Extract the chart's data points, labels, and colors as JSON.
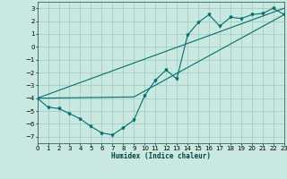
{
  "xlabel": "Humidex (Indice chaleur)",
  "xlim": [
    0,
    23
  ],
  "ylim": [
    -7.5,
    3.5
  ],
  "yticks": [
    3,
    2,
    1,
    0,
    -1,
    -2,
    -3,
    -4,
    -5,
    -6,
    -7
  ],
  "xticks": [
    0,
    1,
    2,
    3,
    4,
    5,
    6,
    7,
    8,
    9,
    10,
    11,
    12,
    13,
    14,
    15,
    16,
    17,
    18,
    19,
    20,
    21,
    22,
    23
  ],
  "bg_color": "#c8e8e0",
  "grid_color": "#a0c8c0",
  "line_color": "#007070",
  "line1_x": [
    0,
    1,
    2,
    3,
    4,
    5,
    6,
    7,
    8,
    9,
    10,
    11,
    12,
    13,
    14,
    15,
    16,
    17,
    18,
    19,
    20,
    21,
    22,
    23
  ],
  "line1_y": [
    -4.0,
    -4.7,
    -4.8,
    -5.2,
    -5.6,
    -6.2,
    -6.7,
    -6.85,
    -6.3,
    -5.7,
    -3.8,
    -2.6,
    -1.8,
    -2.5,
    0.9,
    1.9,
    2.5,
    1.6,
    2.3,
    2.2,
    2.5,
    2.6,
    3.0,
    2.5
  ],
  "line2_x": [
    0,
    23
  ],
  "line2_y": [
    -4.0,
    3.0
  ],
  "line3_x": [
    0,
    9,
    23
  ],
  "line3_y": [
    -4.0,
    -3.9,
    2.5
  ]
}
